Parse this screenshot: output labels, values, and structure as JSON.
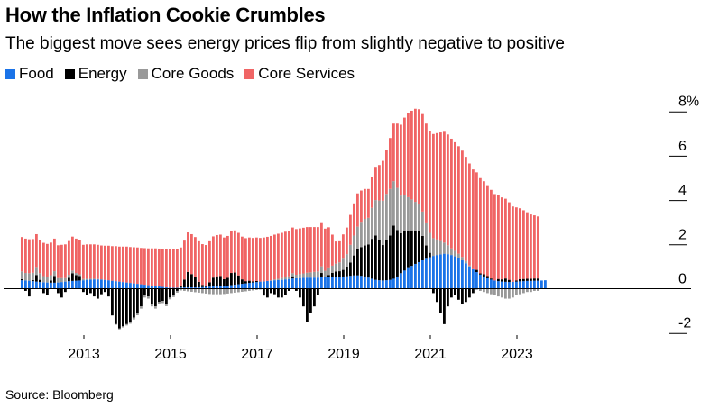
{
  "title": "How the Inflation Cookie Crumbles",
  "subtitle": "The biggest move sees energy prices flip from slightly negative to positive",
  "source": "Source: Bloomberg",
  "colors": {
    "food": "#1a73e8",
    "energy": "#000000",
    "core_goods": "#999999",
    "core_services": "#f06565"
  },
  "chart_data": {
    "type": "bar",
    "stacked": true,
    "x_start": "2012-01",
    "frequency": "monthly",
    "x_ticks": [
      "2013",
      "2015",
      "2017",
      "2019",
      "2021",
      "2023"
    ],
    "y_ticks": [
      "8%",
      "6",
      "4",
      "2",
      "0",
      "-2"
    ],
    "ylim": [
      -2,
      8
    ],
    "legend": "top-left",
    "series": [
      {
        "name": "Food",
        "color_key": "food",
        "values": [
          0.38,
          0.37,
          0.36,
          0.34,
          0.32,
          0.3,
          0.29,
          0.28,
          0.27,
          0.27,
          0.28,
          0.3,
          0.32,
          0.34,
          0.35,
          0.36,
          0.37,
          0.38,
          0.4,
          0.41,
          0.42,
          0.42,
          0.41,
          0.4,
          0.38,
          0.36,
          0.34,
          0.32,
          0.3,
          0.28,
          0.26,
          0.24,
          0.22,
          0.2,
          0.18,
          0.16,
          0.14,
          0.12,
          0.1,
          0.08,
          0.06,
          0.05,
          0.04,
          0.04,
          0.05,
          0.06,
          0.06,
          0.06,
          0.06,
          0.06,
          0.07,
          0.08,
          0.09,
          0.1,
          0.11,
          0.12,
          0.13,
          0.14,
          0.16,
          0.18,
          0.2,
          0.22,
          0.24,
          0.26,
          0.28,
          0.3,
          0.32,
          0.33,
          0.35,
          0.36,
          0.38,
          0.39,
          0.4,
          0.42,
          0.44,
          0.46,
          0.47,
          0.48,
          0.49,
          0.5,
          0.5,
          0.5,
          0.5,
          0.51,
          0.51,
          0.52,
          0.52,
          0.53,
          0.54,
          0.55,
          0.56,
          0.58,
          0.6,
          0.6,
          0.58,
          0.55,
          0.5,
          0.45,
          0.4,
          0.38,
          0.37,
          0.38,
          0.4,
          0.45,
          0.55,
          0.7,
          0.82,
          0.93,
          1.03,
          1.12,
          1.2,
          1.28,
          1.35,
          1.42,
          1.48,
          1.52,
          1.55,
          1.58,
          1.56,
          1.52,
          1.46,
          1.38,
          1.28,
          1.15,
          1.0,
          0.88,
          0.75,
          0.64,
          0.55,
          0.47,
          0.41,
          0.37,
          0.34,
          0.32,
          0.31,
          0.3,
          0.31,
          0.32,
          0.33,
          0.34,
          0.35,
          0.35,
          0.36,
          0.36,
          0.37,
          0.38
        ]
      },
      {
        "name": "Energy",
        "color_key": "energy",
        "values": [
          0.05,
          -0.1,
          -0.35,
          0.05,
          0.3,
          0.1,
          -0.2,
          -0.3,
          0.1,
          0.3,
          -0.2,
          -0.4,
          -0.15,
          0.15,
          0.35,
          0.25,
          0.2,
          -0.15,
          -0.3,
          -0.2,
          -0.35,
          -0.45,
          -0.25,
          -0.15,
          -0.35,
          -1.2,
          -1.6,
          -1.8,
          -1.7,
          -1.6,
          -1.5,
          -1.3,
          -1.1,
          -0.8,
          -0.3,
          -0.35,
          -0.7,
          -0.8,
          -0.6,
          -0.55,
          -0.7,
          -0.4,
          -0.3,
          -0.1,
          0.05,
          0.35,
          0.7,
          0.6,
          0.45,
          0.25,
          0.1,
          0.05,
          0.2,
          0.4,
          0.45,
          0.45,
          0.3,
          0.35,
          0.55,
          0.55,
          0.4,
          0.2,
          0.1,
          0.1,
          0.05,
          0.05,
          0.0,
          -0.3,
          -0.4,
          -0.2,
          -0.25,
          -0.4,
          -0.4,
          -0.3,
          -0.1,
          0.1,
          -0.1,
          -0.4,
          -0.8,
          -1.5,
          -1.1,
          -0.8,
          -0.3,
          0.2,
          0.0,
          0.1,
          0.2,
          0.25,
          0.25,
          0.3,
          0.4,
          0.6,
          0.9,
          1.2,
          1.3,
          1.4,
          1.5,
          1.8,
          2.0,
          1.8,
          1.6,
          1.8,
          2.0,
          2.4,
          2.1,
          1.8,
          1.8,
          1.7,
          1.6,
          1.5,
          1.4,
          1.1,
          0.6,
          0.2,
          -0.2,
          -0.6,
          -1.1,
          -1.6,
          -0.8,
          -0.4,
          -0.3,
          -0.5,
          -0.7,
          -0.6,
          -0.4,
          -0.2,
          0.1,
          0.05,
          0.1,
          0.1,
          0.05,
          0.0,
          0.1,
          0.1,
          0.15,
          0.1,
          0.0,
          0.05,
          0.1,
          0.1,
          0.1,
          0.1,
          0.1,
          0.1
        ]
      },
      {
        "name": "Core Goods",
        "color_key": "core_goods",
        "values": [
          0.35,
          0.34,
          0.34,
          0.33,
          0.32,
          0.3,
          0.28,
          0.26,
          0.24,
          0.22,
          0.2,
          0.18,
          0.16,
          0.14,
          0.12,
          0.1,
          0.08,
          0.06,
          0.05,
          0.04,
          0.03,
          0.02,
          0.01,
          0.0,
          -0.01,
          -0.02,
          -0.03,
          -0.04,
          -0.05,
          -0.06,
          -0.08,
          -0.09,
          -0.1,
          -0.1,
          -0.1,
          -0.1,
          -0.1,
          -0.1,
          -0.1,
          -0.1,
          -0.09,
          -0.08,
          -0.08,
          -0.08,
          -0.08,
          -0.1,
          -0.12,
          -0.14,
          -0.16,
          -0.18,
          -0.2,
          -0.22,
          -0.24,
          -0.25,
          -0.25,
          -0.25,
          -0.24,
          -0.22,
          -0.2,
          -0.18,
          -0.16,
          -0.14,
          -0.12,
          -0.1,
          -0.08,
          -0.06,
          -0.04,
          -0.02,
          0.0,
          0.02,
          0.04,
          0.06,
          0.08,
          0.1,
          0.12,
          0.14,
          0.16,
          0.18,
          0.2,
          0.22,
          0.24,
          0.26,
          0.28,
          0.3,
          0.3,
          0.3,
          0.32,
          0.35,
          0.4,
          0.5,
          0.6,
          0.8,
          0.9,
          1.0,
          1.1,
          1.2,
          1.2,
          1.4,
          1.6,
          1.8,
          2.0,
          2.1,
          2.1,
          2.0,
          1.9,
          1.7,
          1.6,
          1.5,
          1.4,
          1.3,
          1.2,
          1.1,
          1.0,
          0.9,
          0.8,
          0.7,
          0.6,
          0.5,
          0.4,
          0.3,
          0.25,
          0.2,
          0.15,
          0.1,
          0.05,
          0.0,
          -0.05,
          -0.1,
          -0.15,
          -0.2,
          -0.25,
          -0.3,
          -0.35,
          -0.4,
          -0.45,
          -0.45,
          -0.4,
          -0.3,
          -0.25,
          -0.2,
          -0.15,
          -0.15,
          -0.1,
          -0.1
        ]
      },
      {
        "name": "Core Services",
        "color_key": "core_services",
        "values": [
          1.55,
          1.55,
          1.53,
          1.52,
          1.52,
          1.5,
          1.5,
          1.48,
          1.47,
          1.47,
          1.48,
          1.5,
          1.52,
          1.52,
          1.53,
          1.55,
          1.55,
          1.54,
          1.55,
          1.55,
          1.55,
          1.54,
          1.53,
          1.54,
          1.56,
          1.56,
          1.58,
          1.58,
          1.6,
          1.62,
          1.62,
          1.63,
          1.64,
          1.64,
          1.65,
          1.66,
          1.68,
          1.7,
          1.71,
          1.72,
          1.73,
          1.74,
          1.74,
          1.75,
          1.76,
          1.76,
          1.78,
          1.8,
          1.82,
          1.83,
          1.84,
          1.84,
          1.85,
          1.86,
          1.86,
          1.87,
          1.88,
          1.89,
          1.9,
          1.9,
          1.92,
          1.93,
          1.94,
          1.95,
          1.96,
          1.96,
          1.97,
          1.98,
          1.99,
          2.0,
          2.02,
          2.03,
          2.04,
          2.05,
          2.06,
          2.06,
          2.06,
          2.06,
          2.06,
          2.06,
          2.04,
          2.02,
          2.0,
          1.95,
          1.9,
          1.85,
          1.4,
          1.0,
          0.95,
          1.1,
          1.2,
          1.35,
          1.45,
          1.5,
          1.45,
          1.35,
          1.3,
          1.4,
          1.5,
          1.6,
          1.8,
          2.0,
          2.3,
          2.6,
          2.9,
          3.2,
          3.5,
          3.8,
          4.0,
          4.2,
          4.3,
          4.4,
          4.5,
          4.6,
          4.7,
          4.8,
          4.9,
          5.0,
          5.0,
          4.95,
          4.9,
          4.85,
          4.8,
          4.7,
          4.6,
          4.5,
          4.4,
          4.3,
          4.2,
          4.1,
          4.0,
          3.9,
          3.8,
          3.7,
          3.6,
          3.5,
          3.4,
          3.3,
          3.2,
          3.1,
          3.0,
          2.9,
          2.85,
          2.8
        ]
      }
    ]
  }
}
